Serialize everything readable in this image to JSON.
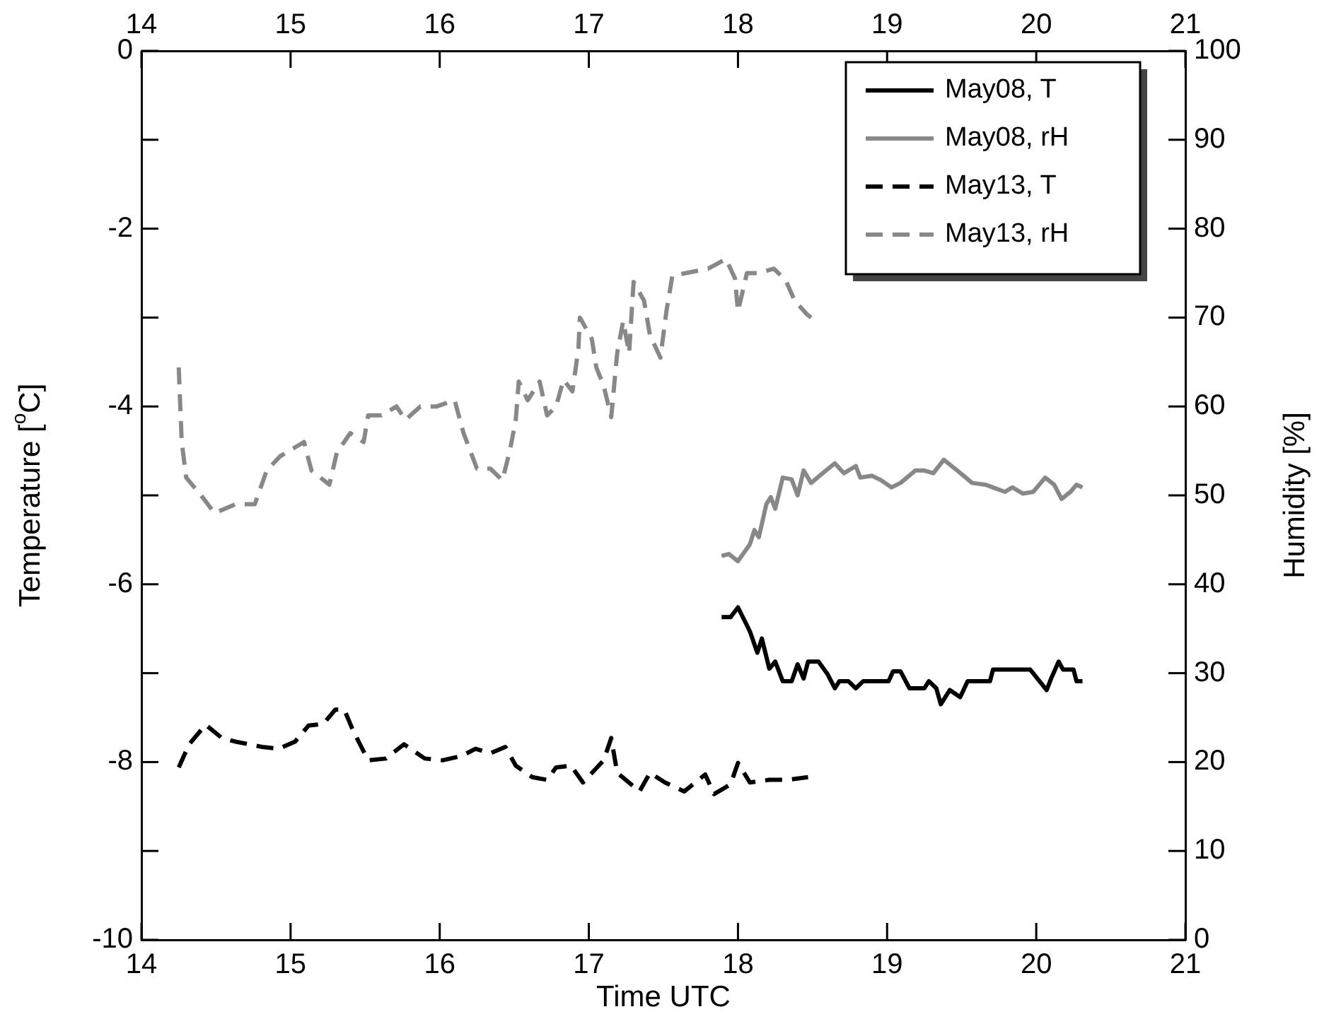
{
  "chart_data": {
    "type": "line",
    "xlabel": "Time UTC",
    "ylabel": "Temperature [$^{o}$C]",
    "y2label": "Humidity [%]",
    "xlim": [
      14,
      21
    ],
    "xticks": [
      14,
      15,
      16,
      17,
      18,
      19,
      20,
      21
    ],
    "x2lim": [
      14,
      21
    ],
    "x2ticks": [
      14,
      15,
      16,
      17,
      18,
      19,
      20,
      21
    ],
    "ylim": [
      -10,
      0
    ],
    "yticks": [
      -10,
      {
        "value": -9,
        "label": null
      },
      -8,
      {
        "value": -7,
        "label": null
      },
      -6,
      {
        "value": -5,
        "label": null
      },
      -4,
      {
        "value": -3,
        "label": null
      },
      -2,
      {
        "value": -1,
        "label": null
      },
      0
    ],
    "y2lim": [
      0,
      100
    ],
    "y2ticks": [
      0,
      10,
      20,
      30,
      40,
      50,
      60,
      70,
      80,
      90,
      100
    ],
    "legend": "top right",
    "series": [
      {
        "name": "May08, T",
        "color": "#000000",
        "line_style": "solid",
        "x": [
          17.89,
          17.95,
          18.0,
          18.08,
          18.13,
          18.16,
          18.21,
          18.25,
          18.3,
          18.36,
          18.4,
          18.44,
          18.47,
          18.54,
          18.6,
          18.65,
          18.68,
          18.74,
          18.79,
          18.84,
          18.92,
          19.01,
          19.04,
          19.09,
          19.15,
          19.25,
          19.28,
          19.33,
          19.36,
          19.42,
          19.49,
          19.54,
          19.69,
          19.71,
          19.96,
          20.07,
          20.1,
          20.15,
          20.18,
          20.25,
          20.27,
          20.31
        ],
        "values": [
          -6.37,
          -6.37,
          -6.26,
          -6.53,
          -6.77,
          -6.61,
          -6.95,
          -6.87,
          -7.09,
          -7.09,
          -6.9,
          -7.06,
          -6.87,
          -6.87,
          -7.01,
          -7.17,
          -7.09,
          -7.09,
          -7.17,
          -7.09,
          -7.09,
          -7.09,
          -6.98,
          -6.98,
          -7.17,
          -7.17,
          -7.09,
          -7.17,
          -7.35,
          -7.19,
          -7.27,
          -7.09,
          -7.09,
          -6.96,
          -6.96,
          -7.19,
          -7.06,
          -6.87,
          -6.96,
          -6.96,
          -7.09,
          -7.09
        ]
      },
      {
        "name": "May08, rH",
        "color": "#888888",
        "line_style": "solid",
        "axis": "y2",
        "x": [
          17.89,
          17.94,
          18.0,
          18.08,
          18.11,
          18.14,
          18.19,
          18.22,
          18.25,
          18.3,
          18.36,
          18.4,
          18.44,
          18.49,
          18.59,
          18.65,
          18.71,
          18.79,
          18.82,
          18.9,
          18.96,
          19.03,
          19.09,
          19.19,
          19.25,
          19.31,
          19.38,
          19.47,
          19.57,
          19.66,
          19.79,
          19.84,
          19.91,
          19.98,
          20.06,
          20.12,
          20.17,
          20.23,
          20.27,
          20.31
        ],
        "values": [
          43.2,
          43.4,
          42.6,
          44.5,
          46.1,
          45.3,
          49.0,
          49.8,
          48.5,
          52.0,
          51.8,
          50.0,
          52.8,
          51.4,
          52.8,
          53.6,
          52.5,
          53.3,
          52.0,
          52.2,
          51.7,
          50.9,
          51.4,
          52.8,
          52.8,
          52.5,
          54.0,
          52.8,
          51.4,
          51.2,
          50.4,
          50.9,
          50.2,
          50.4,
          52.0,
          51.2,
          49.6,
          50.4,
          51.2,
          50.9
        ]
      },
      {
        "name": "May13, T",
        "color": "#000000",
        "line_style": "dashed",
        "x": [
          14.25,
          14.32,
          14.43,
          14.54,
          14.63,
          14.81,
          14.92,
          15.03,
          15.12,
          15.22,
          15.3,
          15.36,
          15.42,
          15.52,
          15.64,
          15.76,
          15.9,
          16.02,
          16.15,
          16.24,
          16.34,
          16.44,
          16.51,
          16.62,
          16.72,
          16.78,
          16.88,
          16.96,
          17.1,
          17.15,
          17.19,
          17.34,
          17.41,
          17.51,
          17.64,
          17.78,
          17.84,
          17.95,
          18.0,
          18.08,
          18.21,
          18.33,
          18.47
        ],
        "values": [
          -8.06,
          -7.8,
          -7.58,
          -7.73,
          -7.77,
          -7.83,
          -7.85,
          -7.77,
          -7.59,
          -7.57,
          -7.41,
          -7.41,
          -7.65,
          -7.98,
          -7.96,
          -7.8,
          -7.96,
          -7.98,
          -7.93,
          -7.85,
          -7.9,
          -7.83,
          -8.04,
          -8.17,
          -8.2,
          -8.06,
          -8.04,
          -8.23,
          -7.98,
          -7.73,
          -8.12,
          -8.33,
          -8.12,
          -8.23,
          -8.33,
          -8.14,
          -8.36,
          -8.25,
          -8.01,
          -8.23,
          -8.2,
          -8.2,
          -8.17
        ]
      },
      {
        "name": "May13, rH",
        "color": "#888888",
        "line_style": "dashed",
        "axis": "y2",
        "x": [
          14.25,
          14.27,
          14.3,
          14.4,
          14.49,
          14.63,
          14.76,
          14.84,
          14.93,
          15.09,
          15.14,
          15.26,
          15.31,
          15.4,
          15.49,
          15.52,
          15.61,
          15.71,
          15.77,
          15.87,
          15.98,
          16.1,
          16.16,
          16.25,
          16.34,
          16.42,
          16.47,
          16.51,
          16.53,
          16.59,
          16.67,
          16.72,
          16.78,
          16.83,
          16.89,
          16.93,
          16.94,
          17.02,
          17.05,
          17.1,
          17.15,
          17.19,
          17.23,
          17.27,
          17.3,
          17.37,
          17.41,
          17.48,
          17.52,
          17.56,
          17.8,
          17.92,
          17.98,
          18.0,
          18.06,
          18.14,
          18.24,
          18.32,
          18.38,
          18.46,
          18.49
        ],
        "values": [
          64.4,
          56.0,
          52.0,
          50.0,
          48.0,
          49.0,
          49.0,
          52.8,
          54.4,
          56.0,
          52.8,
          51.2,
          54.8,
          57.0,
          56.0,
          59.0,
          59.0,
          60.0,
          58.5,
          60.0,
          60.0,
          60.7,
          57.0,
          53.0,
          53.0,
          51.7,
          55.0,
          58.5,
          62.8,
          60.7,
          62.8,
          59.0,
          60.0,
          63.0,
          61.7,
          66.5,
          70.0,
          67.6,
          64.4,
          62.3,
          58.8,
          66.0,
          69.6,
          66.0,
          74.0,
          71.9,
          68.0,
          65.5,
          70.7,
          74.7,
          75.5,
          76.6,
          74.4,
          70.7,
          75.0,
          75.0,
          75.5,
          74.2,
          71.9,
          70.4,
          70.0
        ]
      }
    ]
  }
}
